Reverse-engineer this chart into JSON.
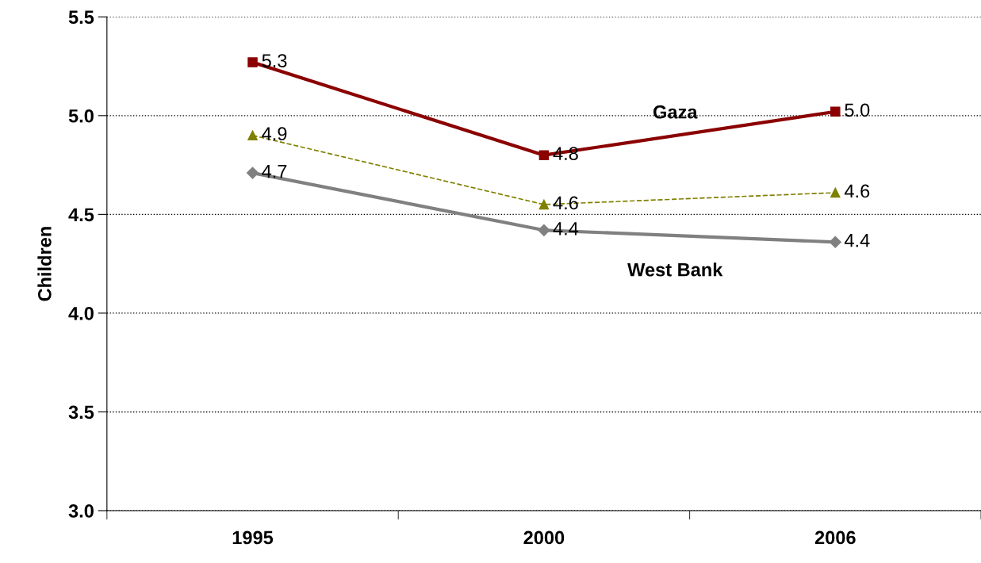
{
  "chart_data": {
    "type": "line",
    "ylabel": "Children",
    "categories": [
      "1995",
      "2000",
      "2006"
    ],
    "ylim": [
      3.0,
      5.5
    ],
    "yticks": [
      {
        "value": 3.0,
        "label": "3.0"
      },
      {
        "value": 3.5,
        "label": "3.5"
      },
      {
        "value": 4.0,
        "label": "4.0"
      },
      {
        "value": 4.5,
        "label": "4.5"
      },
      {
        "value": 5.0,
        "label": "5.0"
      },
      {
        "value": 5.5,
        "label": "5.5"
      }
    ],
    "grid": "y",
    "legend": false,
    "series": [
      {
        "name": "Gaza",
        "color": "#8b0000",
        "values": [
          5.27,
          4.8,
          5.02
        ],
        "value_labels": [
          "5.3",
          "4.8",
          "5.0"
        ],
        "marker": "square",
        "line_style": "solid"
      },
      {
        "color": "#808000",
        "values": [
          4.9,
          4.55,
          4.61
        ],
        "value_labels": [
          "4.9",
          "4.6",
          "4.6"
        ],
        "marker": "triangle",
        "line_style": "dashed"
      },
      {
        "name": "West Bank",
        "color": "#808080",
        "values": [
          4.71,
          4.42,
          4.36
        ],
        "value_labels": [
          "4.7",
          "4.4",
          "4.4"
        ],
        "marker": "diamond",
        "line_style": "solid"
      }
    ]
  }
}
